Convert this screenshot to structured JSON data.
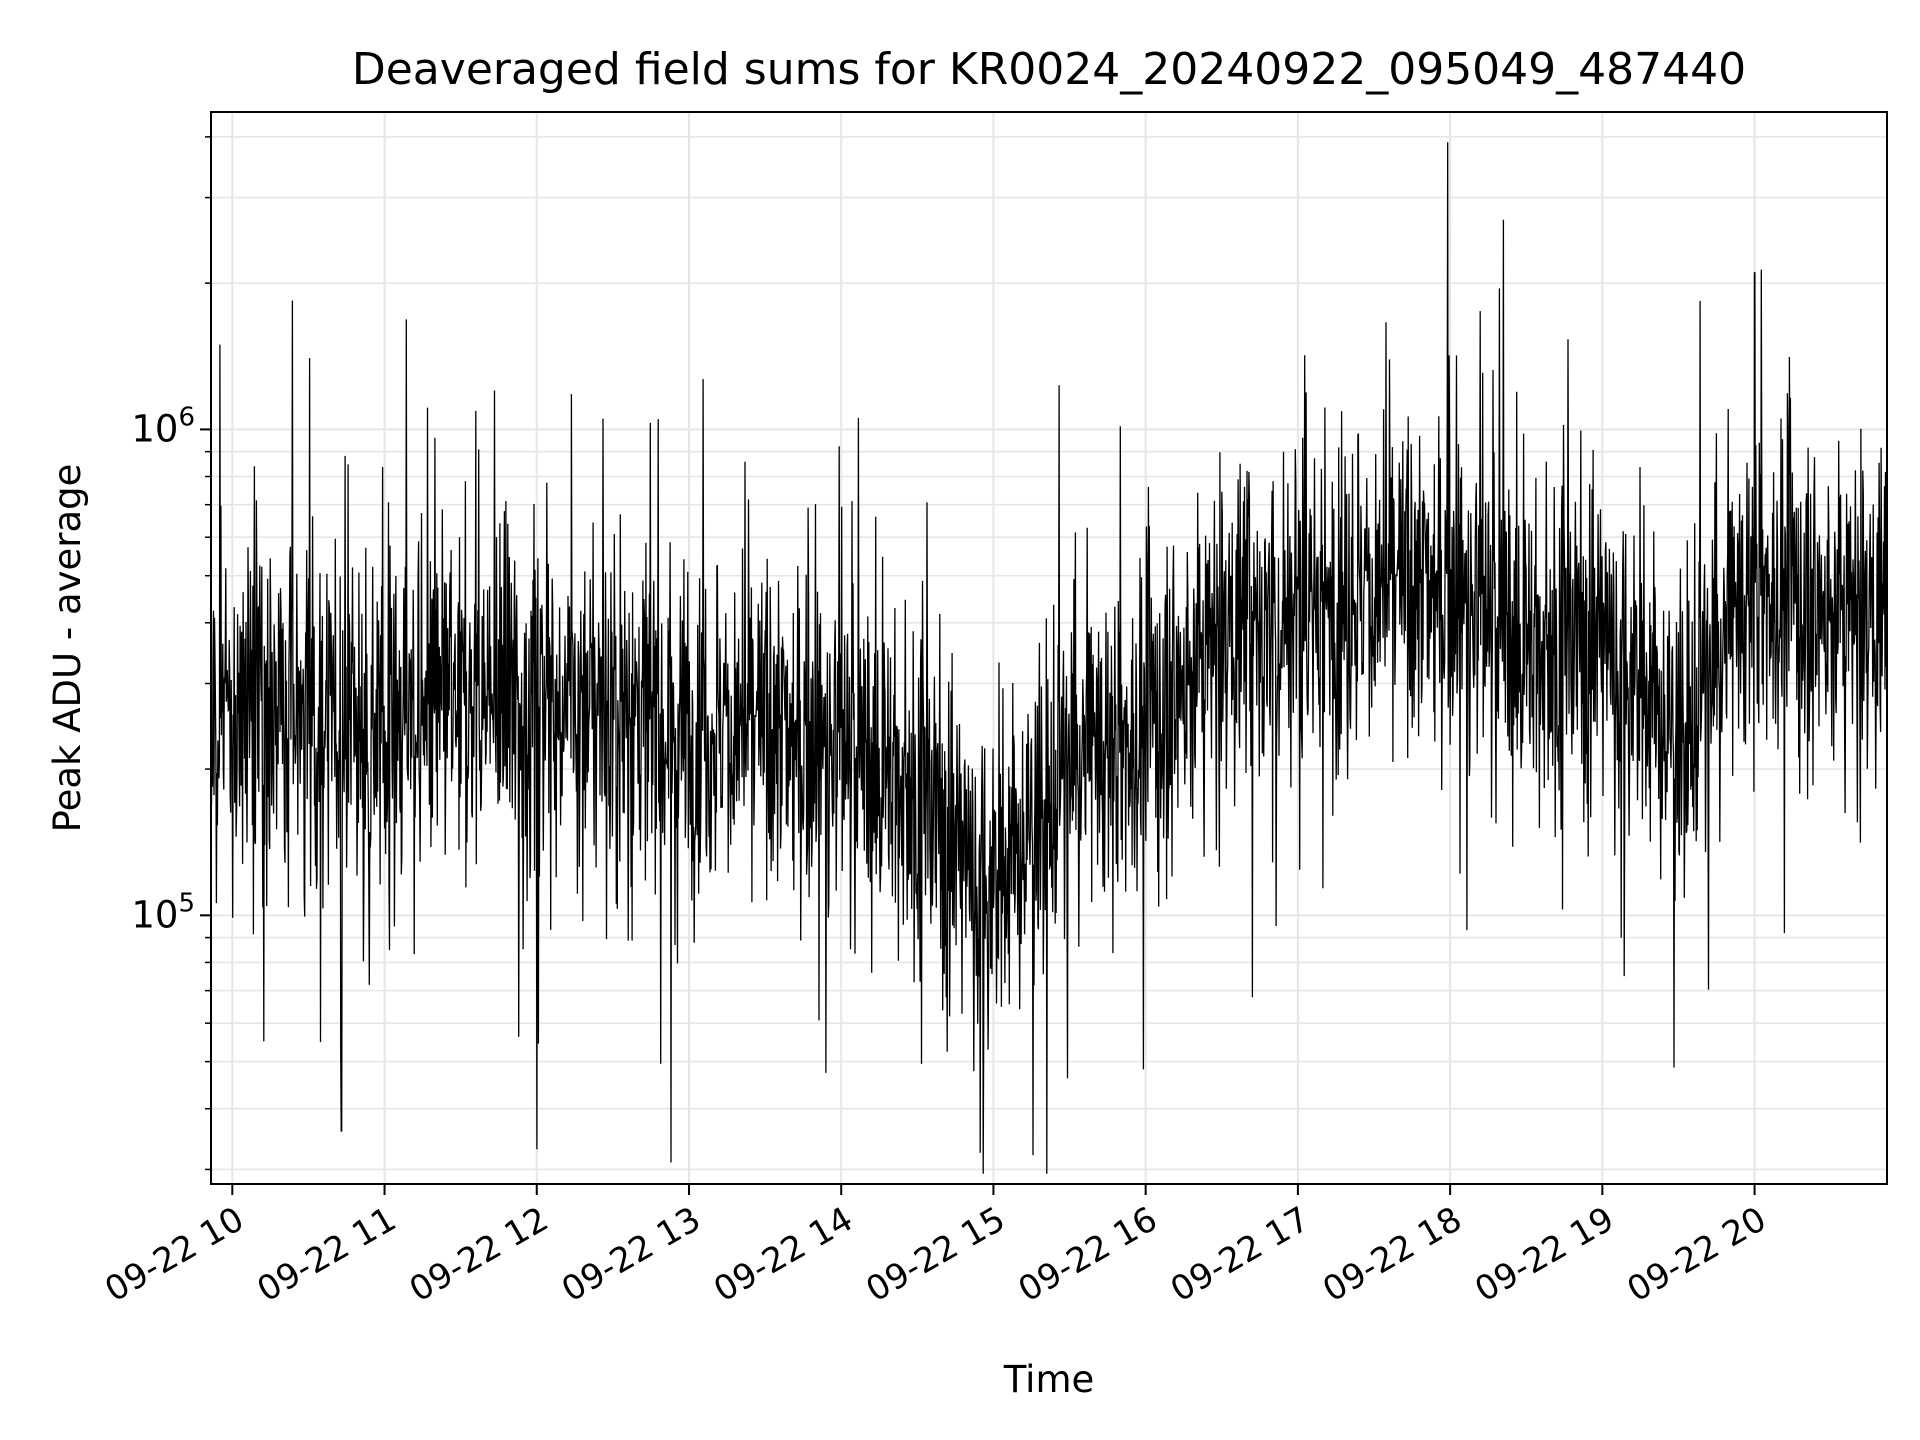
{
  "chart_data": {
    "type": "line",
    "title": "Deaveraged field sums for KR0024_20240922_095049_487440",
    "xlabel": "Time",
    "ylabel": "Peak ADU - average",
    "yscale": "log",
    "ylim": [
      28000,
      4500000
    ],
    "xlim_hours": [
      9.86,
      20.87
    ],
    "grid": true,
    "grid_minor": true,
    "line_color": "#000000",
    "x_tick_labels": [
      "09-22 10",
      "09-22 11",
      "09-22 12",
      "09-22 13",
      "09-22 14",
      "09-22 15",
      "09-22 16",
      "09-22 17",
      "09-22 18",
      "09-22 19",
      "09-22 20"
    ],
    "y_ticks": [
      {
        "value": 100000,
        "base": "10",
        "exponent": "5"
      },
      {
        "value": 1000000,
        "base": "10",
        "exponent": "6"
      }
    ],
    "series": [
      {
        "values_approx_median": [
          {
            "x": "09-22 10",
            "y": 260000
          },
          {
            "x": "09-22 10:30",
            "y": 250000
          },
          {
            "x": "09-22 11",
            "y": 250000
          },
          {
            "x": "09-22 11:30",
            "y": 270000
          },
          {
            "x": "09-22 12",
            "y": 280000
          },
          {
            "x": "09-22 12:30",
            "y": 270000
          },
          {
            "x": "09-22 13",
            "y": 250000
          },
          {
            "x": "09-22 13:30",
            "y": 240000
          },
          {
            "x": "09-22 14",
            "y": 220000
          },
          {
            "x": "09-22 14:30",
            "y": 180000
          },
          {
            "x": "09-22 15",
            "y": 110000
          },
          {
            "x": "09-22 15:30",
            "y": 200000
          },
          {
            "x": "09-22 16",
            "y": 240000
          },
          {
            "x": "09-22 16:30",
            "y": 380000
          },
          {
            "x": "09-22 17",
            "y": 420000
          },
          {
            "x": "09-22 17:30",
            "y": 470000
          },
          {
            "x": "09-22 18",
            "y": 470000
          },
          {
            "x": "09-22 18:30",
            "y": 350000
          },
          {
            "x": "09-22 19",
            "y": 380000
          },
          {
            "x": "09-22 19:30",
            "y": 220000
          },
          {
            "x": "09-22 20",
            "y": 480000
          },
          {
            "x": "09-22 20:30",
            "y": 420000
          }
        ],
        "spikes": [
          {
            "x": "09-22 17:59",
            "y": 3900000
          },
          {
            "x": "09-22 18:21",
            "y": 2700000
          },
          {
            "x": "09-22 20:00",
            "y": 2100000
          },
          {
            "x": "09-22 15:21",
            "y": 29000
          },
          {
            "x": "09-22 12:53",
            "y": 31000
          },
          {
            "x": "09-22 12:00",
            "y": 33000
          },
          {
            "x": "09-22 10:43",
            "y": 36000
          }
        ]
      }
    ]
  }
}
